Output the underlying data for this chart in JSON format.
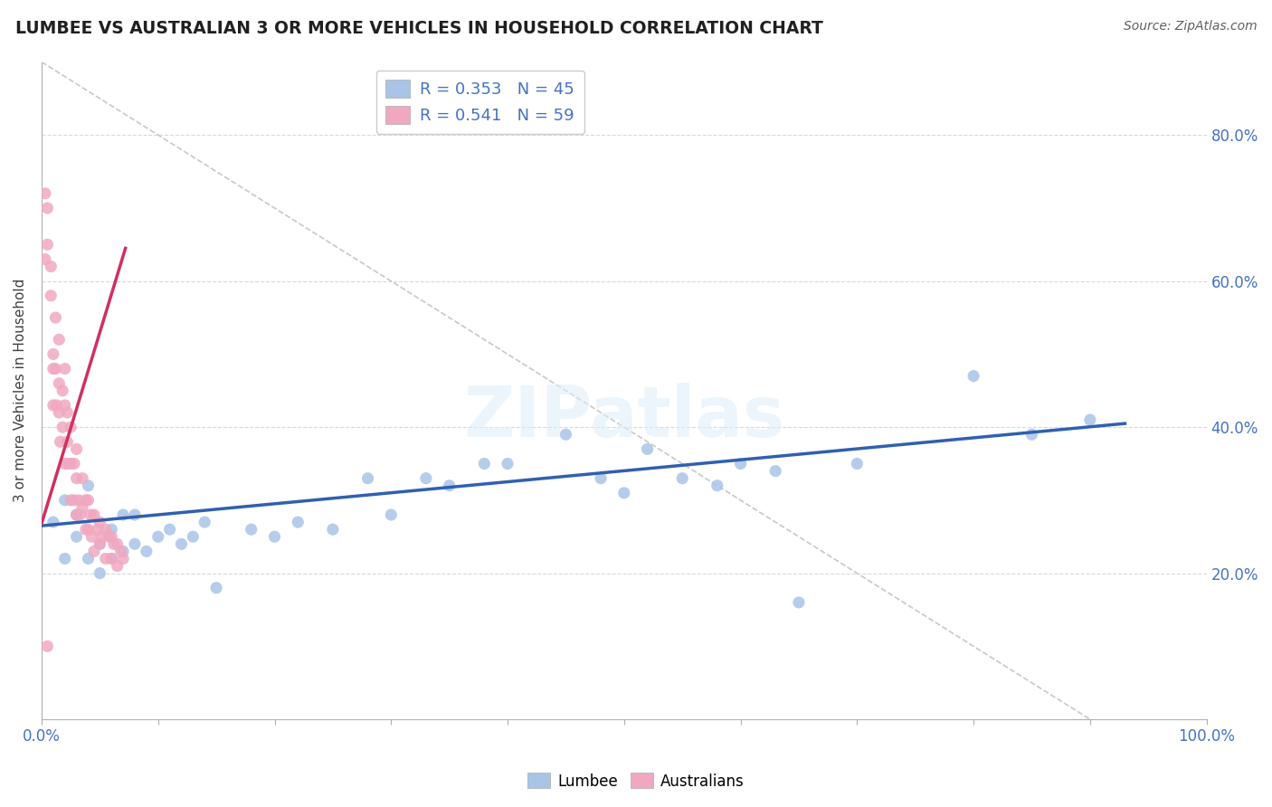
{
  "title": "LUMBEE VS AUSTRALIAN 3 OR MORE VEHICLES IN HOUSEHOLD CORRELATION CHART",
  "source": "Source: ZipAtlas.com",
  "ylabel": "3 or more Vehicles in Household",
  "xlim": [
    0.0,
    1.0
  ],
  "ylim": [
    0.0,
    0.9
  ],
  "lumbee_R": 0.353,
  "lumbee_N": 45,
  "aus_R": 0.541,
  "aus_N": 59,
  "lumbee_color": "#aac4e8",
  "aus_color": "#f0a8c0",
  "lumbee_line_color": "#3060b0",
  "aus_line_color": "#d03060",
  "ref_line_color": "#c8c8c8",
  "background_color": "#ffffff",
  "watermark": "ZIPatlas",
  "lumbee_x": [
    0.01,
    0.02,
    0.02,
    0.03,
    0.03,
    0.04,
    0.04,
    0.05,
    0.05,
    0.06,
    0.06,
    0.07,
    0.07,
    0.08,
    0.08,
    0.09,
    0.1,
    0.11,
    0.12,
    0.13,
    0.14,
    0.15,
    0.18,
    0.2,
    0.22,
    0.25,
    0.28,
    0.3,
    0.33,
    0.35,
    0.38,
    0.4,
    0.45,
    0.48,
    0.5,
    0.52,
    0.55,
    0.58,
    0.6,
    0.63,
    0.65,
    0.7,
    0.8,
    0.85,
    0.9
  ],
  "lumbee_y": [
    0.27,
    0.3,
    0.22,
    0.28,
    0.25,
    0.32,
    0.22,
    0.24,
    0.2,
    0.26,
    0.22,
    0.28,
    0.23,
    0.28,
    0.24,
    0.23,
    0.25,
    0.26,
    0.24,
    0.25,
    0.27,
    0.18,
    0.26,
    0.25,
    0.27,
    0.26,
    0.33,
    0.28,
    0.33,
    0.32,
    0.35,
    0.35,
    0.39,
    0.33,
    0.31,
    0.37,
    0.33,
    0.32,
    0.35,
    0.34,
    0.16,
    0.35,
    0.47,
    0.39,
    0.41
  ],
  "aus_x": [
    0.003,
    0.003,
    0.005,
    0.005,
    0.005,
    0.008,
    0.008,
    0.01,
    0.01,
    0.01,
    0.012,
    0.012,
    0.013,
    0.015,
    0.015,
    0.015,
    0.016,
    0.018,
    0.018,
    0.02,
    0.02,
    0.02,
    0.022,
    0.022,
    0.023,
    0.025,
    0.025,
    0.025,
    0.028,
    0.028,
    0.03,
    0.03,
    0.03,
    0.032,
    0.033,
    0.035,
    0.035,
    0.038,
    0.038,
    0.04,
    0.04,
    0.042,
    0.043,
    0.045,
    0.045,
    0.048,
    0.05,
    0.05,
    0.052,
    0.055,
    0.055,
    0.058,
    0.06,
    0.06,
    0.062,
    0.065,
    0.065,
    0.068,
    0.07
  ],
  "aus_y": [
    0.72,
    0.63,
    0.7,
    0.65,
    0.1,
    0.62,
    0.58,
    0.5,
    0.48,
    0.43,
    0.55,
    0.48,
    0.43,
    0.52,
    0.46,
    0.42,
    0.38,
    0.45,
    0.4,
    0.48,
    0.43,
    0.35,
    0.42,
    0.38,
    0.35,
    0.4,
    0.35,
    0.3,
    0.35,
    0.3,
    0.37,
    0.33,
    0.28,
    0.3,
    0.28,
    0.33,
    0.29,
    0.3,
    0.26,
    0.3,
    0.26,
    0.28,
    0.25,
    0.28,
    0.23,
    0.26,
    0.27,
    0.24,
    0.25,
    0.26,
    0.22,
    0.25,
    0.25,
    0.22,
    0.24,
    0.24,
    0.21,
    0.23,
    0.22
  ],
  "lumbee_trend_x": [
    0.0,
    0.93
  ],
  "lumbee_trend_y": [
    0.265,
    0.405
  ],
  "aus_trend_x": [
    0.0,
    0.072
  ],
  "aus_trend_y": [
    0.268,
    0.645
  ],
  "ref_line_x": [
    0.0,
    0.9
  ],
  "ref_line_y": [
    0.9,
    0.0
  ]
}
